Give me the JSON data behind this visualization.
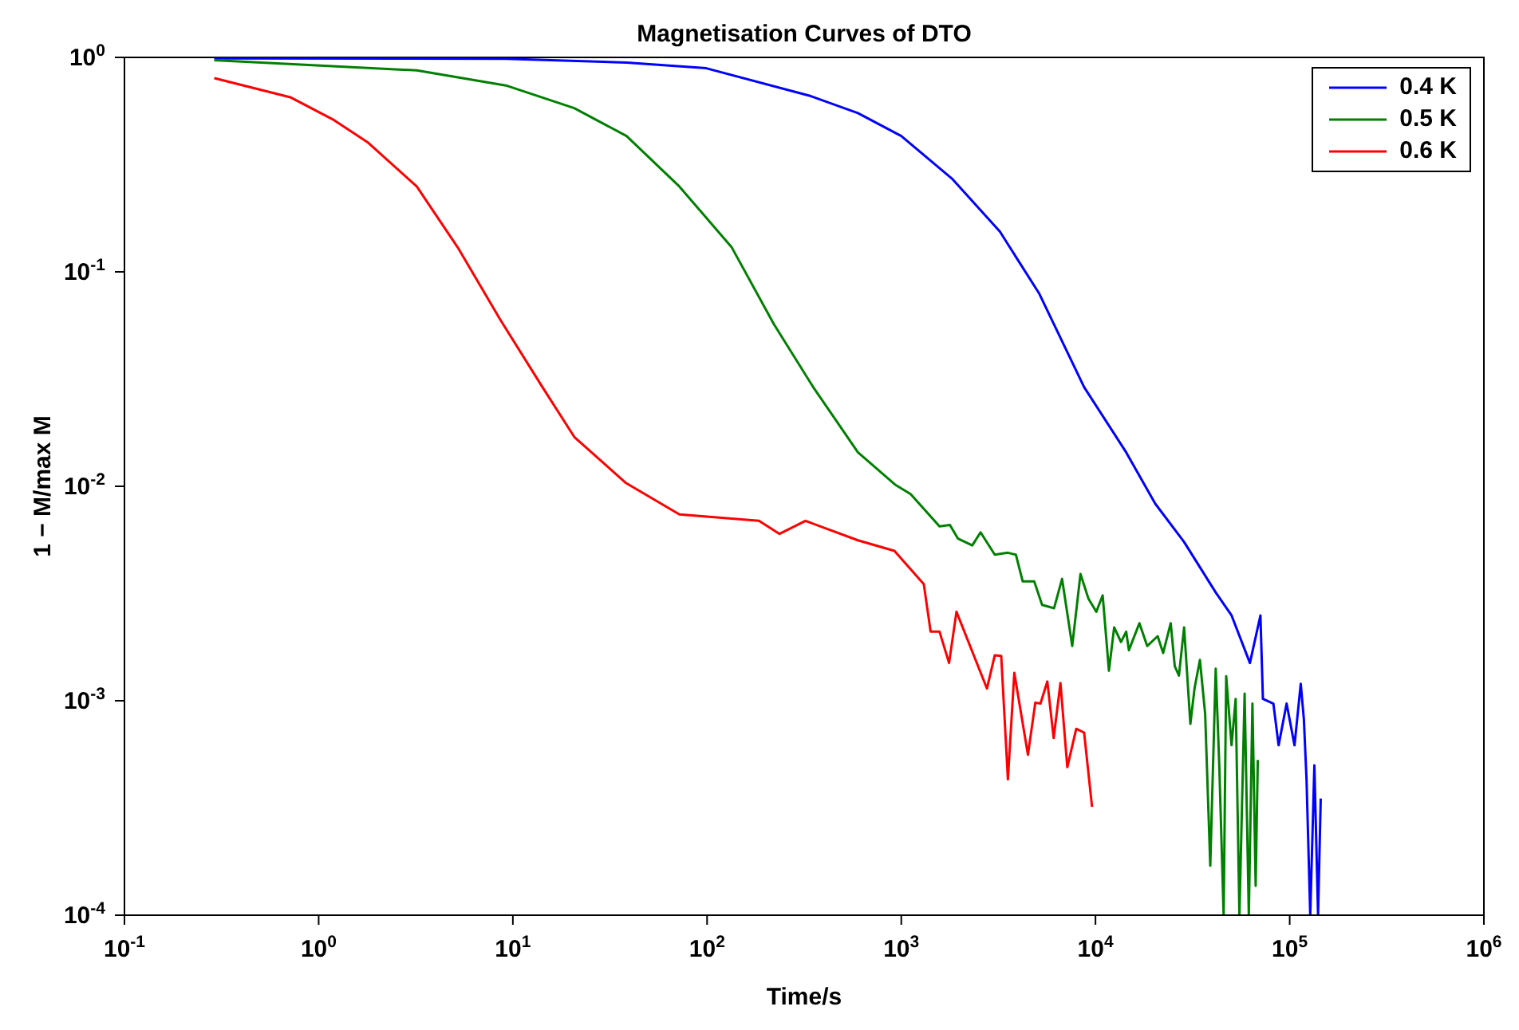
{
  "chart_data": {
    "type": "line",
    "title": "Magnetisation Curves of DTO",
    "xlabel": "Time/s",
    "ylabel": "1 − M/max M",
    "log": "xy",
    "grid": false,
    "legend": "top right",
    "line_style": "solid",
    "marker": "none",
    "xlim": [
      0.1,
      1000000
    ],
    "ylim": [
      0.0001,
      1
    ],
    "xticks": [
      {
        "value": 0.1,
        "label": "10$^{-1}$"
      },
      {
        "value": 1,
        "label": "10$^{0}$"
      },
      {
        "value": 10,
        "label": "10$^{1}$"
      },
      {
        "value": 100,
        "label": "10$^{2}$"
      },
      {
        "value": 1000,
        "label": "10$^{3}$"
      },
      {
        "value": 10000,
        "label": "10$^{4}$"
      },
      {
        "value": 100000,
        "label": "10$^{5}$"
      },
      {
        "value": 1000000,
        "label": "10$^{6}$"
      }
    ],
    "yticks": [
      {
        "value": 0.0001,
        "label": "10$^{-4}$"
      },
      {
        "value": 0.001,
        "label": "10$^{-3}$"
      },
      {
        "value": 0.01,
        "label": "10$^{-2}$"
      },
      {
        "value": 0.1,
        "label": "10$^{-1}$"
      },
      {
        "value": 1,
        "label": "10$^{0}$"
      }
    ],
    "series": [
      {
        "name": "0.4 K",
        "color": "#0000ff",
        "x": [
          0.29,
          9.2,
          38.5,
          99,
          342,
          598,
          1000,
          1840,
          3220,
          5140,
          8740,
          14390,
          20300,
          28600,
          41600,
          50200,
          62400,
          70700,
          72800,
          82400,
          87700,
          96400,
          105900,
          114000,
          118300,
          122100,
          127600,
          134000,
          140000,
          144500
        ],
        "values": [
          0.99,
          0.985,
          0.946,
          0.89,
          0.66,
          0.55,
          0.43,
          0.27,
          0.154,
          0.079,
          0.029,
          0.0144,
          0.0083,
          0.0055,
          0.0032,
          0.0025,
          0.0015,
          0.0025,
          0.00102,
          0.00097,
          0.00062,
          0.00097,
          0.00062,
          0.0012,
          0.00082,
          0.00043,
          0.0001,
          0.0005,
          0.0001,
          0.00035
        ]
      },
      {
        "name": "0.5 K",
        "color": "#008000",
        "x": [
          0.29,
          3.2,
          9.2,
          20.7,
          38.5,
          72,
          134,
          221,
          352,
          598,
          927,
          1117,
          1574,
          1780,
          1960,
          2320,
          2560,
          3030,
          3540,
          3890,
          4220,
          4840,
          5310,
          6120,
          6730,
          7590,
          8370,
          9190,
          10100,
          10890,
          11730,
          12480,
          13530,
          14390,
          14860,
          16830,
          18460,
          20900,
          22300,
          24400,
          25600,
          26900,
          28600,
          30800,
          32400,
          34500,
          36700,
          39000,
          41600,
          43400,
          45700,
          47100,
          50200,
          52700,
          55100,
          58600,
          61600,
          64300,
          66800,
          68500
        ],
        "values": [
          0.97,
          0.87,
          0.74,
          0.58,
          0.43,
          0.25,
          0.13,
          0.057,
          0.029,
          0.0144,
          0.0102,
          0.0092,
          0.0065,
          0.0066,
          0.0057,
          0.0053,
          0.0061,
          0.0048,
          0.0049,
          0.0048,
          0.0036,
          0.0036,
          0.0028,
          0.0027,
          0.0037,
          0.0018,
          0.0039,
          0.003,
          0.0026,
          0.0031,
          0.00138,
          0.0022,
          0.00188,
          0.0021,
          0.00172,
          0.0023,
          0.0018,
          0.002,
          0.00167,
          0.0023,
          0.00145,
          0.00131,
          0.0022,
          0.00078,
          0.00115,
          0.00155,
          0.00087,
          0.00017,
          0.00141,
          0.0005,
          0.0001,
          0.0013,
          0.00062,
          0.00102,
          0.0001,
          0.00108,
          0.0001,
          0.00097,
          0.000137,
          0.00053
        ]
      },
      {
        "name": "0.6 K",
        "color": "#ff0000",
        "x": [
          0.29,
          0.72,
          1.2,
          1.8,
          3.2,
          5.2,
          8.6,
          14.2,
          20.7,
          38,
          72,
          185,
          236,
          321,
          598,
          922,
          1306,
          1416,
          1574,
          1762,
          1924,
          2762,
          3030,
          3270,
          3540,
          3820,
          4490,
          4900,
          5210,
          5650,
          6090,
          6600,
          7160,
          7960,
          8740,
          9600
        ],
        "values": [
          0.8,
          0.65,
          0.51,
          0.4,
          0.25,
          0.13,
          0.06,
          0.029,
          0.017,
          0.0104,
          0.0074,
          0.0069,
          0.006,
          0.0069,
          0.0056,
          0.005,
          0.0035,
          0.0021,
          0.0021,
          0.0015,
          0.0026,
          0.00114,
          0.00163,
          0.00162,
          0.00043,
          0.00135,
          0.00056,
          0.00098,
          0.00097,
          0.00123,
          0.00067,
          0.00121,
          0.00049,
          0.00074,
          0.00071,
          0.00032
        ]
      }
    ]
  }
}
